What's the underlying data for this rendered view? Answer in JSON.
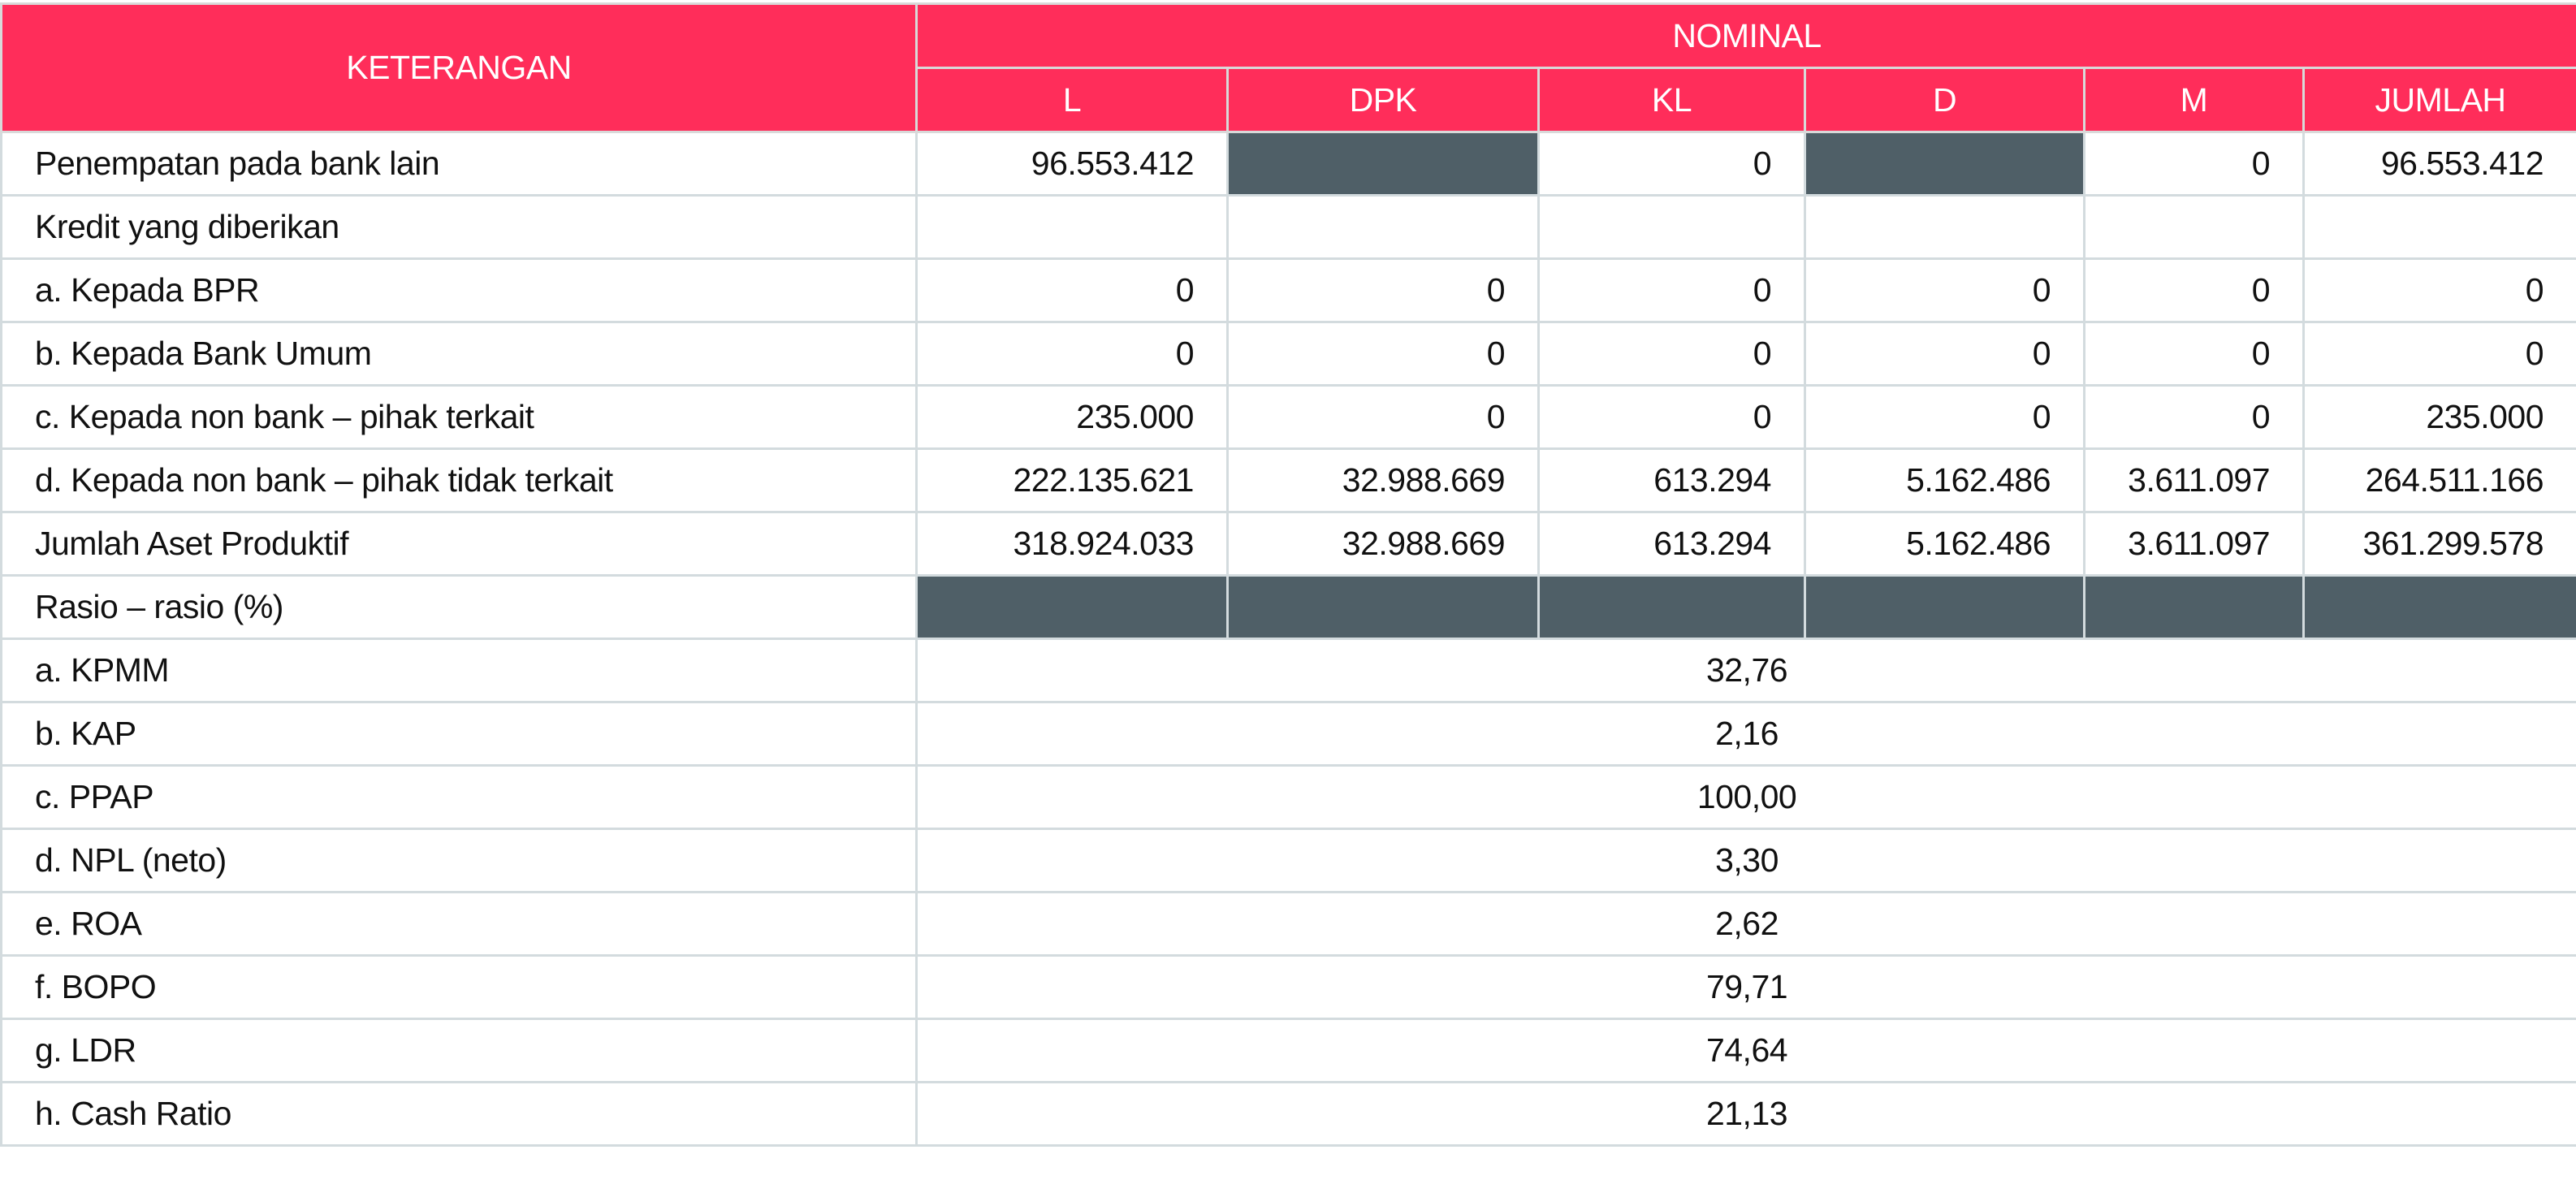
{
  "header": {
    "keterangan": "KETERANGAN",
    "nominal": "NOMINAL",
    "columns": [
      "L",
      "DPK",
      "KL",
      "D",
      "M",
      "JUMLAH"
    ]
  },
  "rows": [
    {
      "label": "Penempatan pada bank lain",
      "values": [
        "96.553.412",
        null,
        "0",
        null,
        "0",
        "96.553.412"
      ],
      "dark": [
        false,
        true,
        false,
        true,
        false,
        false
      ]
    },
    {
      "label": "Kredit yang diberikan",
      "values": [
        "",
        "",
        "",
        "",
        "",
        ""
      ],
      "dark": [
        false,
        false,
        false,
        false,
        false,
        false
      ]
    },
    {
      "label": "a. Kepada BPR",
      "values": [
        "0",
        "0",
        "0",
        "0",
        "0",
        "0"
      ],
      "dark": [
        false,
        false,
        false,
        false,
        false,
        false
      ]
    },
    {
      "label": "b. Kepada Bank Umum",
      "values": [
        "0",
        "0",
        "0",
        "0",
        "0",
        "0"
      ],
      "dark": [
        false,
        false,
        false,
        false,
        false,
        false
      ]
    },
    {
      "label": "c. Kepada non bank – pihak terkait",
      "values": [
        "235.000",
        "0",
        "0",
        "0",
        "0",
        "235.000"
      ],
      "dark": [
        false,
        false,
        false,
        false,
        false,
        false
      ]
    },
    {
      "label": "d. Kepada non bank – pihak tidak terkait",
      "values": [
        "222.135.621",
        "32.988.669",
        "613.294",
        "5.162.486",
        "3.611.097",
        "264.511.166"
      ],
      "dark": [
        false,
        false,
        false,
        false,
        false,
        false
      ]
    },
    {
      "label": "Jumlah Aset Produktif",
      "values": [
        "318.924.033",
        "32.988.669",
        "613.294",
        "5.162.486",
        "3.611.097",
        "361.299.578"
      ],
      "dark": [
        false,
        false,
        false,
        false,
        false,
        false
      ]
    },
    {
      "label": "Rasio – rasio (%)",
      "values": [
        null,
        null,
        null,
        null,
        null,
        null
      ],
      "dark": [
        true,
        true,
        true,
        true,
        true,
        true
      ]
    }
  ],
  "ratios": [
    {
      "label": "a. KPMM",
      "value": "32,76"
    },
    {
      "label": "b. KAP",
      "value": "2,16"
    },
    {
      "label": "c. PPAP",
      "value": "100,00"
    },
    {
      "label": "d. NPL (neto)",
      "value": "3,30"
    },
    {
      "label": "e. ROA",
      "value": "2,62"
    },
    {
      "label": "f. BOPO",
      "value": "79,71"
    },
    {
      "label": "g. LDR",
      "value": "74,64"
    },
    {
      "label": "h. Cash Ratio",
      "value": "21,13"
    }
  ]
}
